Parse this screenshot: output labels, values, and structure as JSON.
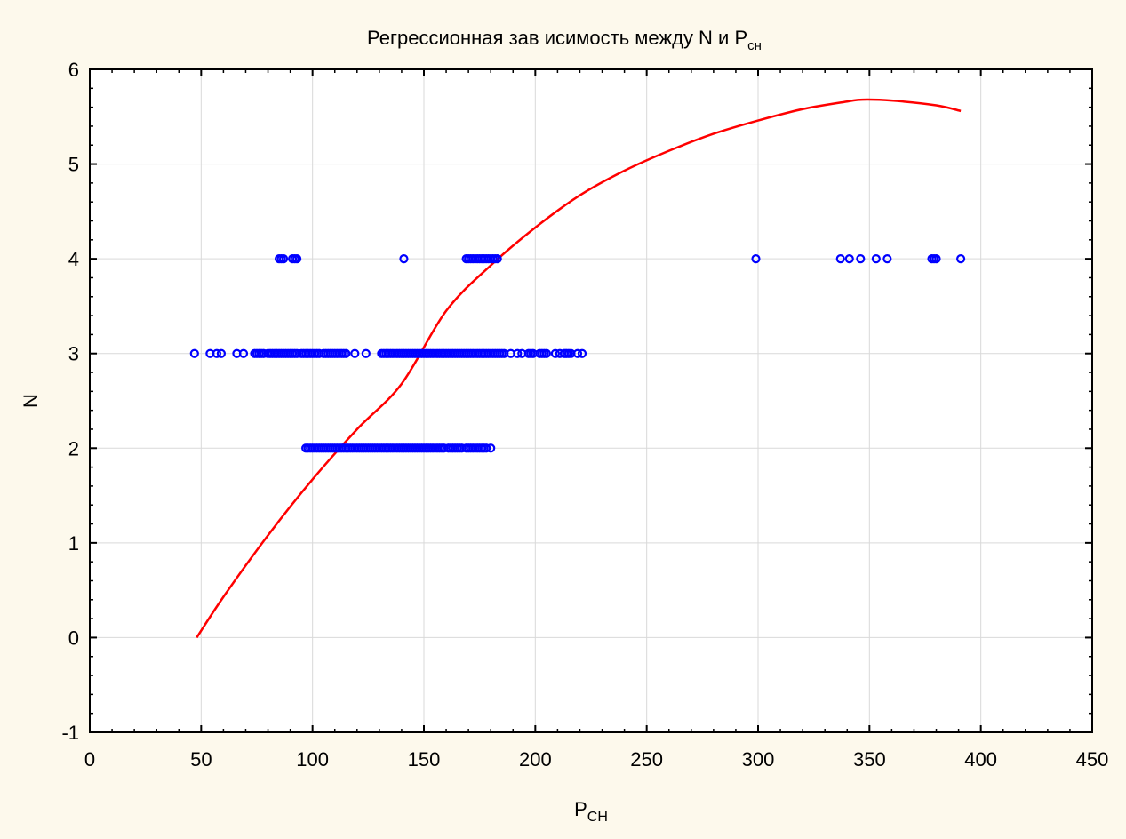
{
  "chart_data": {
    "type": "scatter",
    "title": "Регрессионная зав исимость между  N  и P",
    "title_subscript": "сн",
    "xlabel": "P",
    "xlabel_subscript": "CH",
    "ylabel": "N",
    "xlim": [
      0,
      450
    ],
    "ylim": [
      -1,
      6
    ],
    "x_ticks": [
      0,
      50,
      100,
      150,
      200,
      250,
      300,
      350,
      400,
      450
    ],
    "y_ticks": [
      -1,
      0,
      1,
      2,
      3,
      4,
      5,
      6
    ],
    "grid": true,
    "colors": {
      "points": "#0000ff",
      "curve": "#ff0000",
      "background": "#fdf9ec",
      "plot_area": "#ffffff",
      "grid": "#d9d9d9"
    },
    "series": [
      {
        "kind": "scatter",
        "groups": [
          {
            "y": 4,
            "x": [
              85,
              86,
              87,
              91,
              92,
              93,
              141,
              169,
              170,
              171,
              172,
              173,
              174,
              175,
              176,
              177,
              178,
              179,
              180,
              181,
              182,
              183,
              299,
              337,
              341,
              346,
              353,
              358,
              378,
              379,
              380,
              391
            ]
          },
          {
            "y": 3,
            "x": [
              47,
              54,
              57,
              59,
              66,
              69,
              74,
              75,
              76,
              77,
              78,
              80,
              81,
              82,
              83,
              84,
              85,
              86,
              87,
              88,
              89,
              90,
              91,
              92,
              93,
              95,
              96,
              97,
              98,
              99,
              100,
              101,
              102,
              103,
              105,
              106,
              107,
              108,
              109,
              110,
              111,
              112,
              113,
              114,
              115,
              119,
              124,
              131,
              132,
              133,
              134,
              135,
              136,
              137,
              138,
              139,
              140,
              141,
              142,
              143,
              144,
              145,
              146,
              147,
              148,
              149,
              150,
              151,
              152,
              153,
              154,
              155,
              156,
              157,
              158,
              159,
              160,
              161,
              162,
              163,
              164,
              165,
              166,
              167,
              168,
              169,
              170,
              171,
              172,
              173,
              174,
              175,
              176,
              177,
              178,
              179,
              180,
              181,
              182,
              183,
              184,
              185,
              186,
              189,
              192,
              194,
              197,
              198,
              199,
              202,
              203,
              204,
              205,
              209,
              211,
              213,
              214,
              215,
              216,
              219,
              221
            ]
          },
          {
            "y": 2,
            "x": [
              97,
              98,
              99,
              100,
              101,
              102,
              103,
              104,
              105,
              106,
              107,
              108,
              109,
              110,
              111,
              112,
              113,
              114,
              115,
              116,
              117,
              118,
              119,
              120,
              121,
              122,
              123,
              124,
              125,
              126,
              127,
              128,
              129,
              130,
              131,
              132,
              133,
              134,
              135,
              136,
              137,
              138,
              139,
              140,
              141,
              142,
              143,
              144,
              145,
              146,
              147,
              148,
              149,
              150,
              151,
              152,
              153,
              154,
              155,
              156,
              157,
              158,
              159,
              161,
              162,
              163,
              164,
              165,
              166,
              167,
              169,
              170,
              171,
              172,
              173,
              174,
              175,
              176,
              177,
              178,
              180
            ]
          }
        ]
      },
      {
        "kind": "line",
        "x": [
          48,
          60,
          80,
          100,
          120,
          140,
          160,
          180,
          200,
          220,
          240,
          260,
          280,
          300,
          320,
          340,
          347,
          360,
          380,
          391
        ],
        "y": [
          0.0,
          0.43,
          1.08,
          1.67,
          2.2,
          2.68,
          3.45,
          3.93,
          4.33,
          4.67,
          4.93,
          5.14,
          5.32,
          5.46,
          5.58,
          5.66,
          5.68,
          5.67,
          5.62,
          5.56
        ]
      }
    ]
  }
}
